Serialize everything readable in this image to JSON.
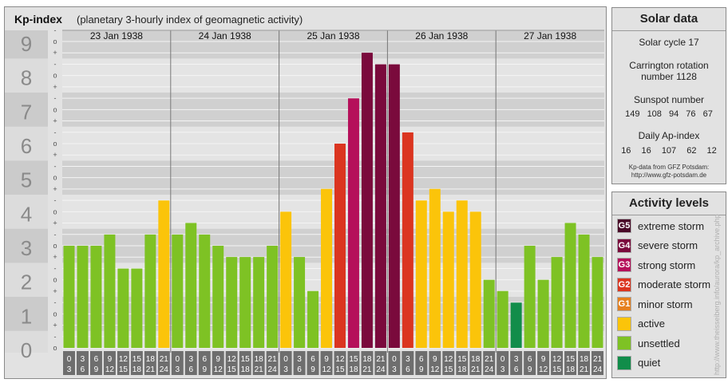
{
  "header": {
    "title": "Kp-index",
    "subtitle": "(planetary 3-hourly index of geomagnetic activity)"
  },
  "chart_data": {
    "type": "bar",
    "y_ticks": [
      "0",
      "1",
      "2",
      "3",
      "4",
      "5",
      "6",
      "7",
      "8",
      "9"
    ],
    "minor_ticks": [
      "+",
      "o",
      "-"
    ],
    "ylim": [
      0,
      9
    ],
    "days": [
      "23 Jan 1938",
      "24 Jan 1938",
      "25 Jan 1938",
      "26 Jan 1938",
      "27 Jan 1938"
    ],
    "interval_start": [
      "0",
      "3",
      "6",
      "9",
      "12",
      "15",
      "18",
      "21"
    ],
    "interval_end": [
      "3",
      "6",
      "9",
      "12",
      "15",
      "18",
      "21",
      "24"
    ],
    "values": [
      3.0,
      3.0,
      3.0,
      3.33,
      2.33,
      2.33,
      3.33,
      4.33,
      3.33,
      3.67,
      3.33,
      3.0,
      2.67,
      2.67,
      2.67,
      3.0,
      4.0,
      2.67,
      1.67,
      4.67,
      6.0,
      7.33,
      8.67,
      8.33,
      8.33,
      6.33,
      4.33,
      4.67,
      4.0,
      4.33,
      4.0,
      2.0,
      1.67,
      1.33,
      3.0,
      2.0,
      2.67,
      3.67,
      3.33,
      2.67
    ],
    "activity_colors": {
      "quiet": "#118d4a",
      "unsettled": "#7ec224",
      "active": "#fbc40a",
      "G1": "#e5801e",
      "G2": "#db3520",
      "G3": "#b5105a",
      "G4": "#7a0a3c",
      "G5": "#4a0a28"
    }
  },
  "solar": {
    "title": "Solar data",
    "cycle": "Solar cycle 17",
    "carrington": "Carrington rotation number 1128",
    "sunspot_label": "Sunspot number",
    "sunspot_values": [
      "149",
      "108",
      "94",
      "76",
      "67"
    ],
    "ap_label": "Daily Ap-index",
    "ap_values": [
      "16",
      "16",
      "107",
      "62",
      "12"
    ],
    "source_line1": "Kp-data from GFZ Potsdam:",
    "source_line2": "http://www.gfz-potsdam.de"
  },
  "legend": {
    "title": "Activity levels",
    "items": [
      {
        "badge": "G5",
        "label": "extreme storm",
        "color": "#4a0a28"
      },
      {
        "badge": "G4",
        "label": "severe storm",
        "color": "#7a0a3c"
      },
      {
        "badge": "G3",
        "label": "strong storm",
        "color": "#b5105a"
      },
      {
        "badge": "G2",
        "label": "moderate storm",
        "color": "#db3520"
      },
      {
        "badge": "G1",
        "label": "minor storm",
        "color": "#e5801e"
      },
      {
        "badge": "",
        "label": "active",
        "color": "#fbc40a"
      },
      {
        "badge": "",
        "label": "unsettled",
        "color": "#7ec224"
      },
      {
        "badge": "",
        "label": "quiet",
        "color": "#118d4a"
      }
    ]
  },
  "watermark": "http://www.theisseiberg.info/aurora/kp_archive.php"
}
